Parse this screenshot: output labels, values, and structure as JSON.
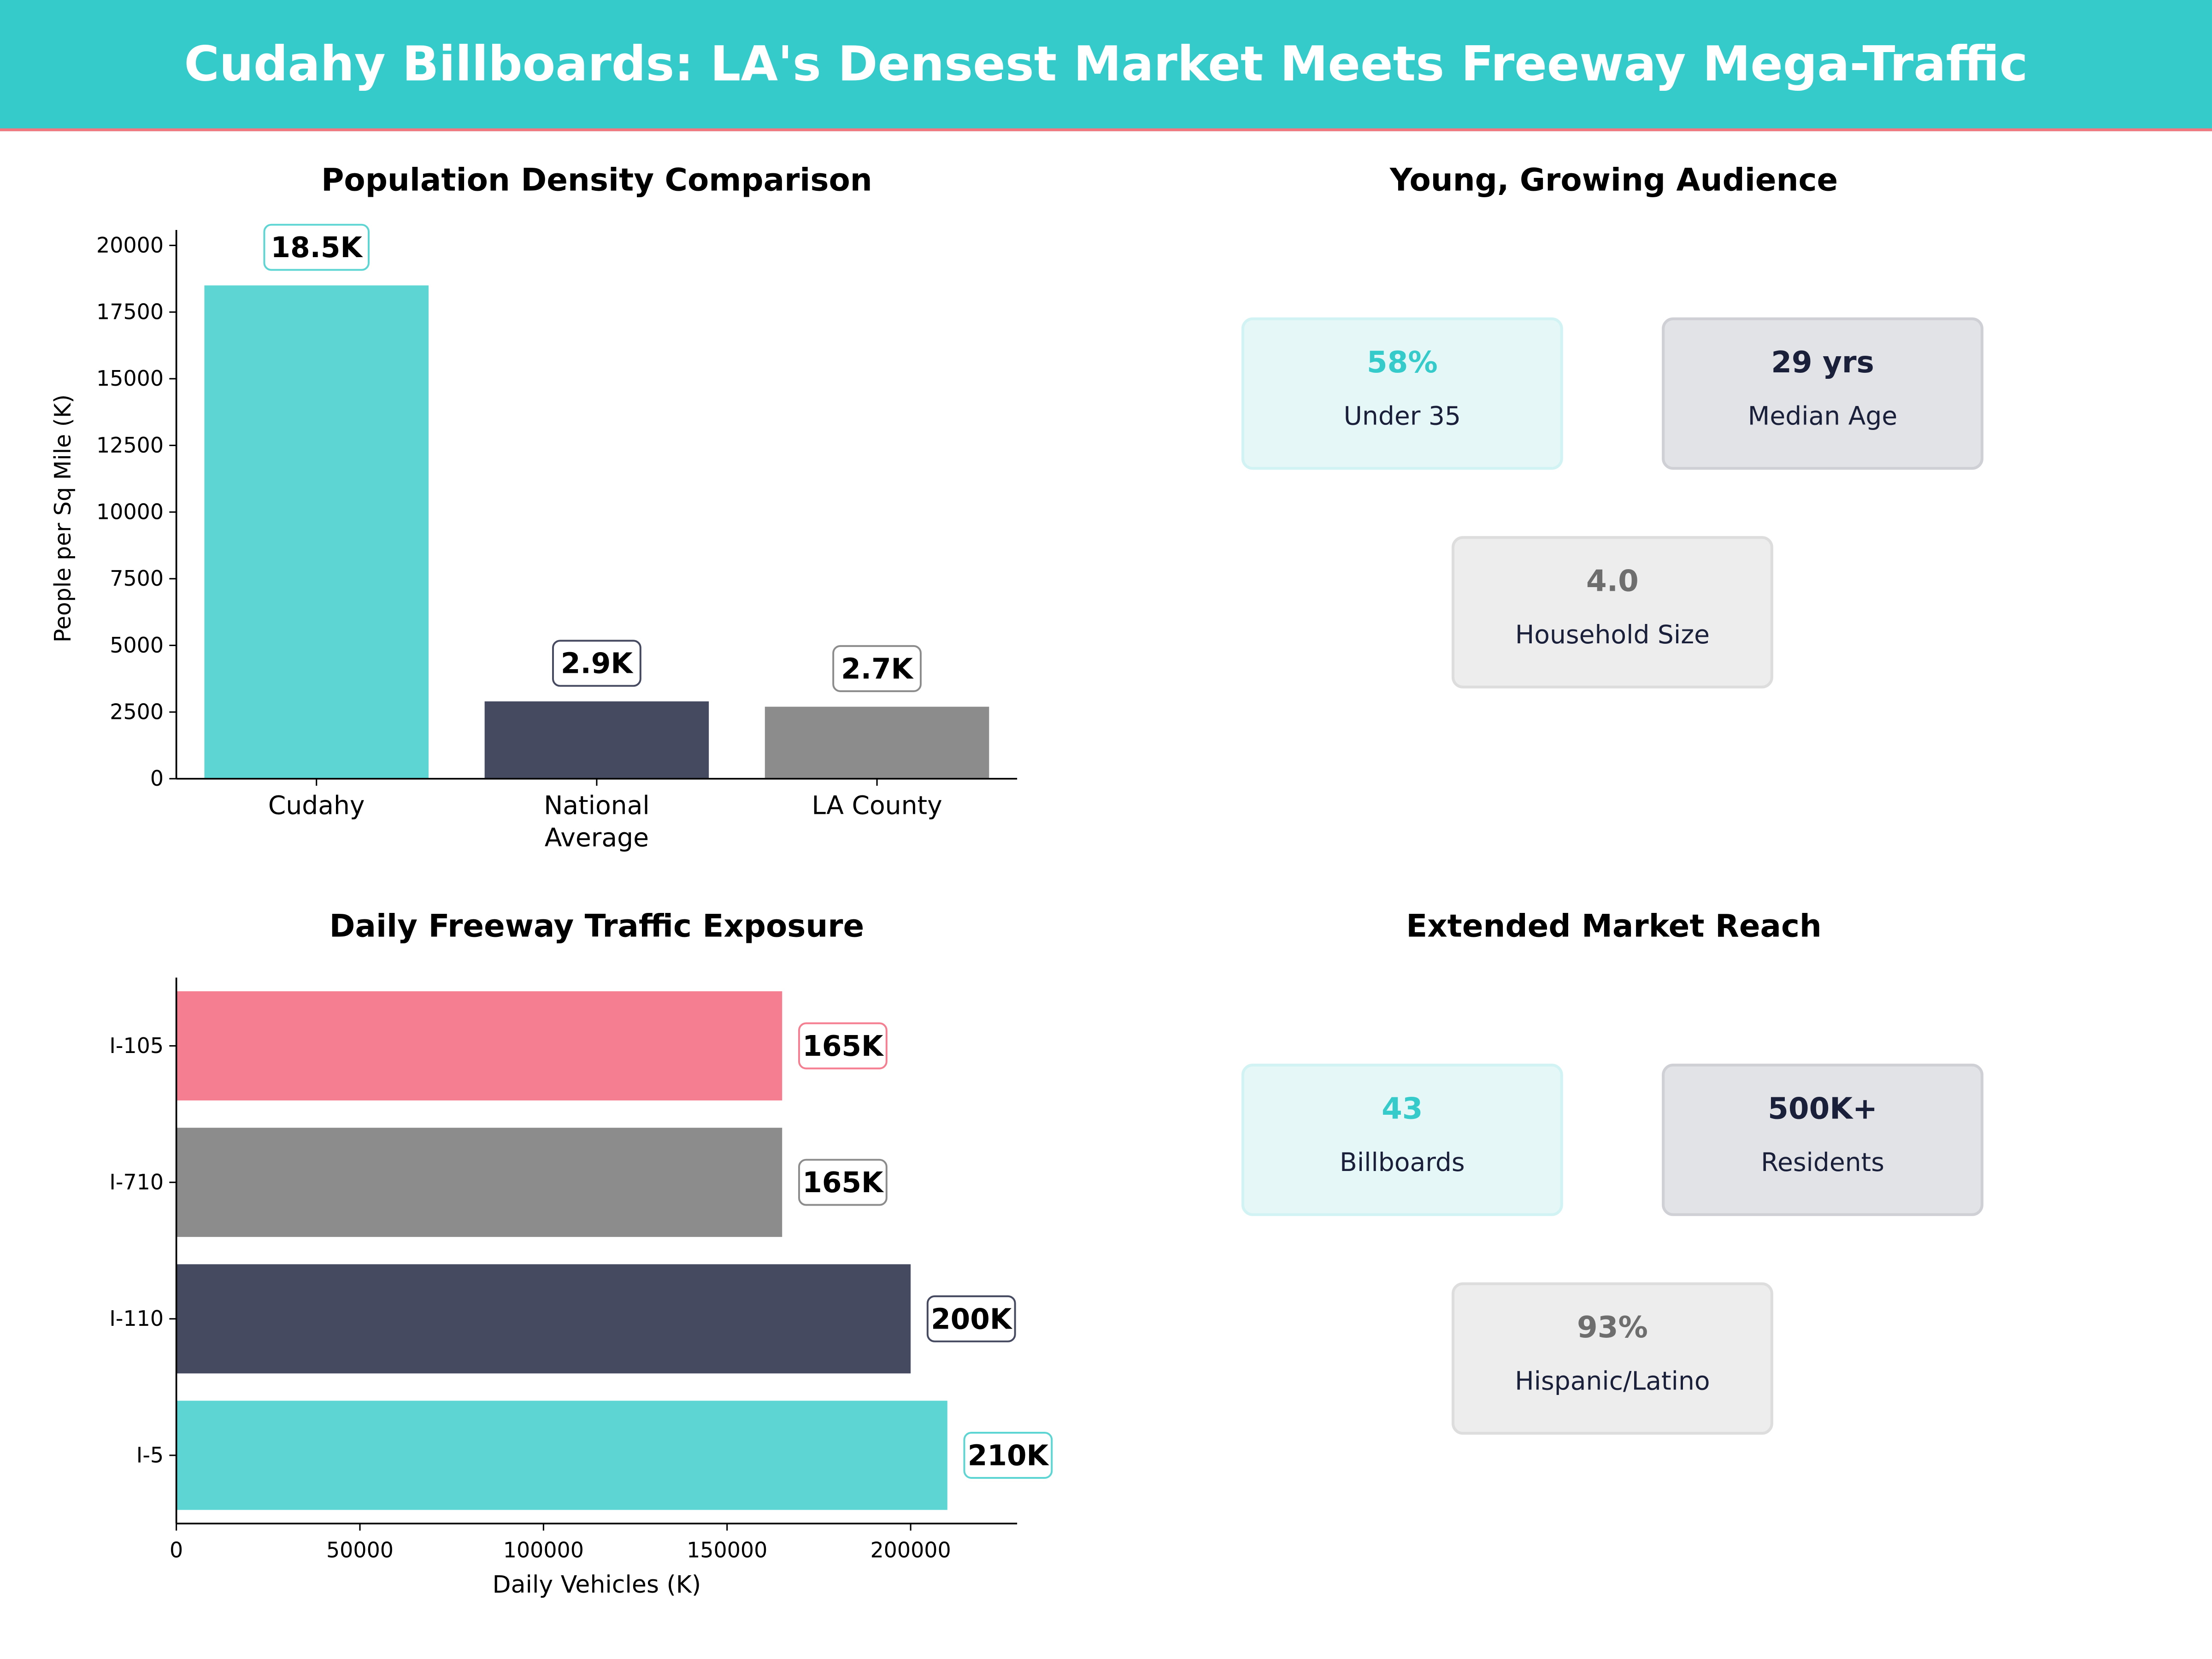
{
  "title": "Cudahy Billboards: LA's Densest Market Meets Freeway Mega-Traffic",
  "colors": {
    "header": "#36CBCB",
    "accent_line": "#F4777F",
    "teal": "#5DD6D3",
    "dark": "#464A61",
    "gray": "#8C8C8C",
    "pink": "#F67E91"
  },
  "chart_data": [
    {
      "type": "bar",
      "title": "Population Density Comparison",
      "ylabel": "People per Sq Mile (K)",
      "xlabel": "",
      "categories": [
        "Cudahy",
        "National Average",
        "LA County"
      ],
      "category_lines": [
        [
          "Cudahy"
        ],
        [
          "National",
          "Average"
        ],
        [
          "LA County"
        ]
      ],
      "values": [
        18500,
        2900,
        2700
      ],
      "data_labels": [
        "18.5K",
        "2.9K",
        "2.7K"
      ],
      "bar_colors": [
        "#5DD6D3",
        "#464A61",
        "#8C8C8C"
      ],
      "yticks": [
        0,
        2500,
        5000,
        7500,
        10000,
        12500,
        15000,
        17500,
        20000
      ],
      "ylim": [
        0,
        20580
      ],
      "grid": false
    },
    {
      "type": "bar",
      "orientation": "horizontal",
      "title": "Daily Freeway Traffic Exposure",
      "xlabel": "Daily Vehicles (K)",
      "ylabel": "",
      "categories": [
        "I-5",
        "I-110",
        "I-710",
        "I-105"
      ],
      "values": [
        210000,
        200000,
        165000,
        165000
      ],
      "data_labels": [
        "210K",
        "200K",
        "165K",
        "165K"
      ],
      "bar_colors": [
        "#5DD6D3",
        "#464A61",
        "#8C8C8C",
        "#F67E91"
      ],
      "xticks": [
        0,
        50000,
        100000,
        150000,
        200000
      ],
      "xlim": [
        0,
        229000
      ],
      "grid": false
    }
  ],
  "audience": {
    "title": "Young, Growing Audience",
    "cards": [
      {
        "value": "58%",
        "label": "Under 35"
      },
      {
        "value": "29 yrs",
        "label": "Median Age"
      },
      {
        "value": "4.0",
        "label": "Household Size"
      }
    ]
  },
  "reach": {
    "title": "Extended Market Reach",
    "cards": [
      {
        "value": "43",
        "label": "Billboards"
      },
      {
        "value": "500K+",
        "label": "Residents"
      },
      {
        "value": "93%",
        "label": "Hispanic/Latino"
      }
    ]
  }
}
